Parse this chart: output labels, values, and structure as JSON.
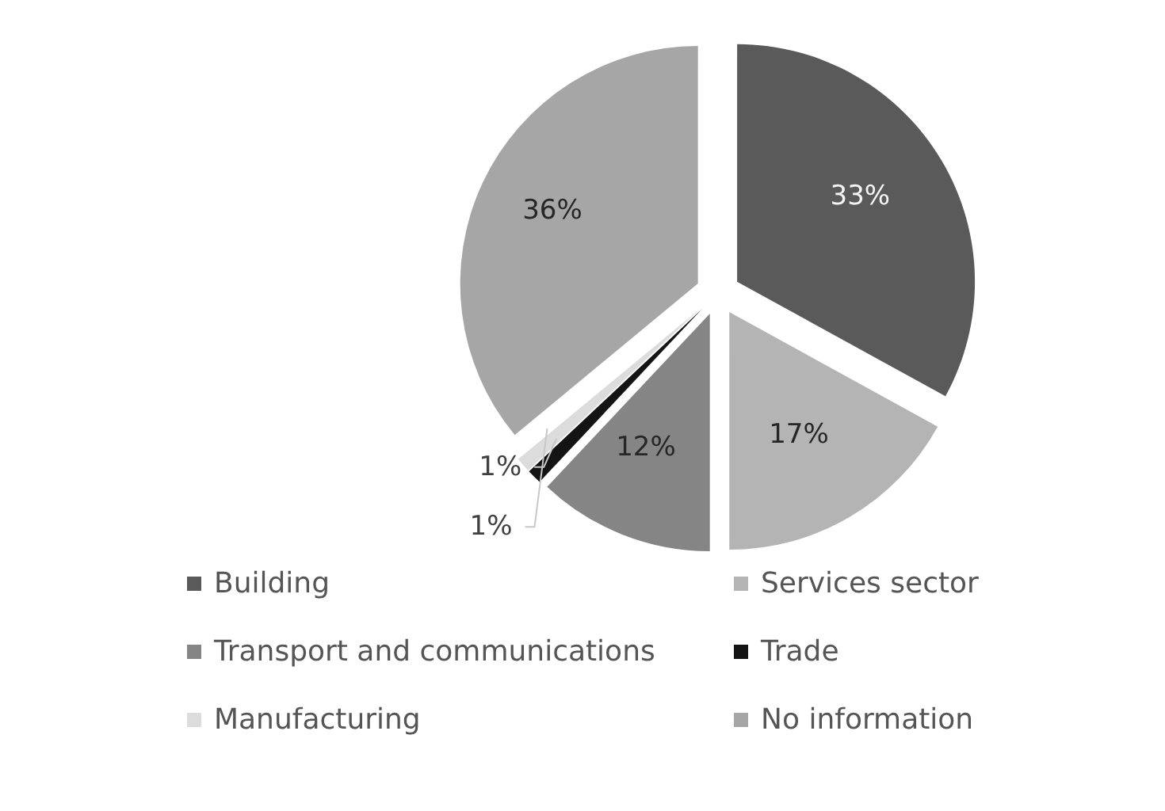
{
  "chart_data": {
    "type": "pie",
    "categories": [
      "Building",
      "Services sector",
      "Transport and communications",
      "Trade",
      "Manufacturing",
      "No information"
    ],
    "values": [
      33,
      17,
      12,
      1,
      1,
      36
    ],
    "colors": [
      "#5a5a5a",
      "#b4b4b4",
      "#858585",
      "#141414",
      "#dcdcdc",
      "#a6a6a6"
    ],
    "value_labels": [
      "33%",
      "17%",
      "12%",
      "1%",
      "1%",
      "36%"
    ],
    "legend": "bottom"
  }
}
